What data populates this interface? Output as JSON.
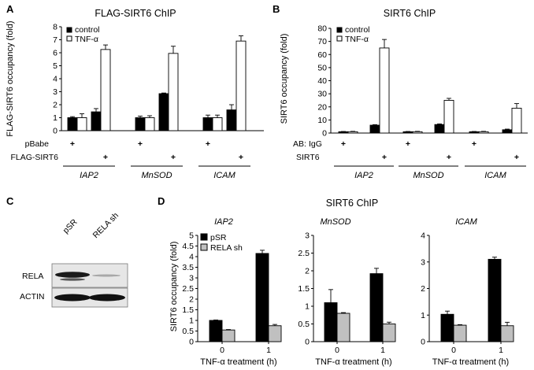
{
  "panels": {
    "A": "A",
    "B": "B",
    "C": "C",
    "D": "D"
  },
  "colors": {
    "control": "#000000",
    "tnf": "#ffffff",
    "pSR": "#000000",
    "RELA_sh": "#c0c0c0",
    "axis": "#000000"
  },
  "chart_data": [
    {
      "id": "A",
      "type": "bar",
      "title": "FLAG-SIRT6 ChIP",
      "ylabel": "FLAG-SIRT6 occupancy (fold)",
      "ylim": [
        0,
        8
      ],
      "yticks": [
        "0",
        "1",
        "2",
        "3",
        "4",
        "5",
        "6",
        "7",
        "8"
      ],
      "legend": [
        "control",
        "TNF-α"
      ],
      "conditions": [
        {
          "label": "pBabe",
          "marks": [
            "+",
            "",
            "+",
            "",
            "+",
            ""
          ]
        },
        {
          "label": "FLAG-SIRT6",
          "marks": [
            "",
            "+",
            "",
            "+",
            "",
            "+"
          ]
        }
      ],
      "genes": [
        "IAP2",
        "MnSOD",
        "ICAM"
      ],
      "series": [
        {
          "name": "control",
          "values": [
            1.0,
            1.45,
            1.0,
            2.85,
            1.0,
            1.6
          ],
          "errors": [
            0.08,
            0.25,
            0.12,
            0.05,
            0.2,
            0.4
          ]
        },
        {
          "name": "TNF-α",
          "values": [
            1.0,
            6.25,
            1.0,
            5.95,
            1.0,
            6.9
          ],
          "errors": [
            0.3,
            0.35,
            0.15,
            0.55,
            0.2,
            0.4
          ]
        }
      ]
    },
    {
      "id": "B",
      "type": "bar",
      "title": "SIRT6 ChIP",
      "ylabel": "SIRT6 occupancy (fold)",
      "ylim": [
        0,
        80
      ],
      "yticks": [
        "0",
        "10",
        "20",
        "30",
        "40",
        "50",
        "60",
        "70",
        "80"
      ],
      "legend": [
        "control",
        "TNF-α"
      ],
      "ab_label": "AB:",
      "conditions": [
        {
          "label": "IgG",
          "marks": [
            "+",
            "",
            "+",
            "",
            "+",
            ""
          ]
        },
        {
          "label": "SIRT6",
          "marks": [
            "",
            "+",
            "",
            "+",
            "",
            "+"
          ]
        }
      ],
      "genes": [
        "IAP2",
        "MnSOD",
        "ICAM"
      ],
      "series": [
        {
          "name": "control",
          "values": [
            1.0,
            6.0,
            1.0,
            6.5,
            1.0,
            2.5
          ],
          "errors": [
            0.2,
            0.4,
            0.2,
            0.5,
            0.2,
            0.5
          ]
        },
        {
          "name": "TNF-α",
          "values": [
            1.0,
            65.0,
            1.0,
            25.0,
            1.0,
            19.0
          ],
          "errors": [
            0.3,
            6.5,
            0.3,
            1.5,
            0.3,
            3.5
          ]
        }
      ]
    },
    {
      "id": "D",
      "type": "bar",
      "title": "SIRT6 ChIP",
      "ylabel": "SIRT6 occupancy (fold)",
      "xlabel": "TNF-α treatment (h)",
      "legend": [
        "pSR",
        "RELA sh"
      ],
      "subplots": [
        {
          "gene": "IAP2",
          "ylim": [
            0,
            5
          ],
          "yticks": [
            "0",
            "0.5",
            "1",
            "1.5",
            "2",
            "2.5",
            "3",
            "3.5",
            "4",
            "4.5",
            "5"
          ],
          "categories": [
            "0",
            "1"
          ],
          "series": [
            {
              "name": "pSR",
              "values": [
                1.0,
                4.15
              ],
              "errors": [
                0.02,
                0.15
              ]
            },
            {
              "name": "RELA sh",
              "values": [
                0.55,
                0.75
              ],
              "errors": [
                0.02,
                0.06
              ]
            }
          ]
        },
        {
          "gene": "MnSOD",
          "ylim": [
            0,
            3
          ],
          "yticks": [
            "0",
            "0.5",
            "1",
            "1.5",
            "2",
            "2.5",
            "3"
          ],
          "categories": [
            "0",
            "1"
          ],
          "series": [
            {
              "name": "pSR",
              "values": [
                1.1,
                1.92
              ],
              "errors": [
                0.37,
                0.15
              ]
            },
            {
              "name": "RELA sh",
              "values": [
                0.8,
                0.5
              ],
              "errors": [
                0.02,
                0.05
              ]
            }
          ]
        },
        {
          "gene": "ICAM",
          "ylim": [
            0,
            4
          ],
          "yticks": [
            "0",
            "1",
            "2",
            "3",
            "4"
          ],
          "categories": [
            "0",
            "1"
          ],
          "series": [
            {
              "name": "pSR",
              "values": [
                1.03,
                3.1
              ],
              "errors": [
                0.12,
                0.08
              ]
            },
            {
              "name": "RELA sh",
              "values": [
                0.62,
                0.6
              ],
              "errors": [
                0.02,
                0.13
              ]
            }
          ]
        }
      ]
    }
  ],
  "blot": {
    "lanes": [
      "pSR",
      "RELA sh"
    ],
    "rows": [
      "RELA",
      "ACTIN"
    ]
  }
}
